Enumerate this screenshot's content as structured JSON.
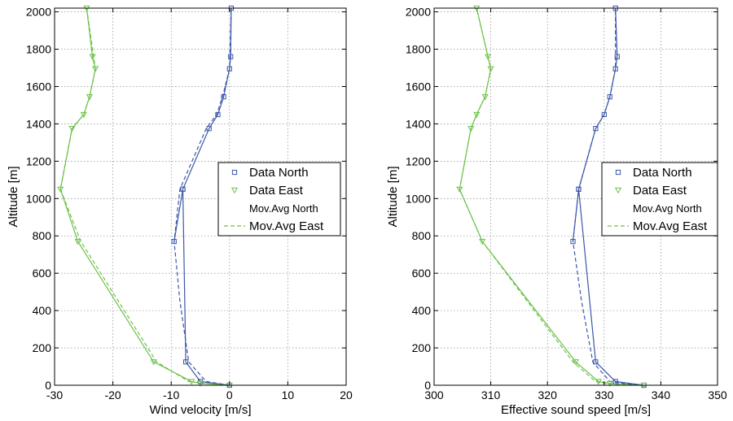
{
  "chart_data": [
    {
      "type": "line",
      "xlabel": "Wind velocity [m/s]",
      "ylabel": "Altitude [m]",
      "xlim": [
        -30,
        20
      ],
      "ylim": [
        0,
        2020
      ],
      "xticks": [
        -30,
        -20,
        -10,
        0,
        10,
        20
      ],
      "yticks": [
        0,
        200,
        400,
        600,
        800,
        1000,
        1200,
        1400,
        1600,
        1800,
        2000
      ],
      "grid": true,
      "legend_position": "right",
      "series": [
        {
          "name": "Data North",
          "marker": "square",
          "color": "#3b57a8",
          "x": [
            0,
            -5,
            -7.5,
            -8,
            -9.5,
            -8,
            -3.5,
            -2,
            -1,
            0,
            0.2,
            0.3
          ],
          "y": [
            0,
            20,
            125,
            1050,
            770,
            1050,
            1375,
            1450,
            1545,
            1695,
            1760,
            2020
          ]
        },
        {
          "name": "Data East",
          "marker": "triangle-down",
          "color": "#6cc24a",
          "x": [
            0,
            -5,
            -6.5,
            -13,
            -26,
            -29,
            -27,
            -25,
            -24,
            -23,
            -23.5,
            -24.5
          ],
          "y": [
            0,
            10,
            20,
            125,
            770,
            1050,
            1375,
            1450,
            1545,
            1695,
            1760,
            2020
          ]
        },
        {
          "name": "Mov.Avg North",
          "style": "dashed",
          "color": "#3b57a8",
          "x": [
            0,
            -4,
            -7,
            -8.5,
            -9.5,
            -8.5,
            -4,
            -2.2,
            -1.2,
            0,
            0.3
          ],
          "y": [
            0,
            20,
            125,
            450,
            770,
            1050,
            1375,
            1450,
            1545,
            1695,
            2020
          ]
        },
        {
          "name": "Mov.Avg East",
          "style": "dashed",
          "color": "#6cc24a",
          "x": [
            -1,
            -4,
            -7,
            -12.5,
            -25.5,
            -29,
            -27,
            -25,
            -24,
            -23,
            -24.5
          ],
          "y": [
            0,
            10,
            20,
            125,
            770,
            1050,
            1375,
            1450,
            1545,
            1695,
            2020
          ]
        }
      ]
    },
    {
      "type": "line",
      "xlabel": "Effective sound speed [m/s]",
      "ylabel": "Altitude [m]",
      "xlim": [
        300,
        350
      ],
      "ylim": [
        0,
        2020
      ],
      "xticks": [
        300,
        310,
        320,
        330,
        340,
        350
      ],
      "yticks": [
        0,
        200,
        400,
        600,
        800,
        1000,
        1200,
        1400,
        1600,
        1800,
        2000
      ],
      "grid": true,
      "legend_position": "right",
      "series": [
        {
          "name": "Data North",
          "marker": "square",
          "color": "#3b57a8",
          "x": [
            337,
            332,
            328.5,
            325.5,
            324.5,
            325.5,
            328.5,
            330,
            331,
            332,
            332.3,
            332
          ],
          "y": [
            0,
            20,
            125,
            1050,
            770,
            1050,
            1375,
            1450,
            1545,
            1695,
            1760,
            2020
          ]
        },
        {
          "name": "Data East",
          "marker": "triangle-down",
          "color": "#6cc24a",
          "x": [
            337,
            331,
            329,
            325,
            308.5,
            304.5,
            306.5,
            307.5,
            309,
            310,
            309.5,
            307.5
          ],
          "y": [
            0,
            10,
            20,
            125,
            770,
            1050,
            1375,
            1450,
            1545,
            1695,
            1760,
            2020
          ]
        },
        {
          "name": "Mov.Avg North",
          "style": "dashed",
          "color": "#3b57a8",
          "x": [
            336,
            331,
            328,
            326,
            324.5,
            325.5,
            328.5,
            330,
            331,
            332,
            332
          ],
          "y": [
            0,
            20,
            125,
            450,
            770,
            1050,
            1375,
            1450,
            1545,
            1695,
            2020
          ]
        },
        {
          "name": "Mov.Avg East",
          "style": "dashed",
          "color": "#6cc24a",
          "x": [
            335,
            330,
            328.5,
            324.5,
            308.5,
            304.5,
            306.5,
            307.5,
            309,
            310,
            307.5
          ],
          "y": [
            0,
            10,
            20,
            125,
            770,
            1050,
            1375,
            1450,
            1545,
            1695,
            2020
          ]
        }
      ]
    }
  ]
}
